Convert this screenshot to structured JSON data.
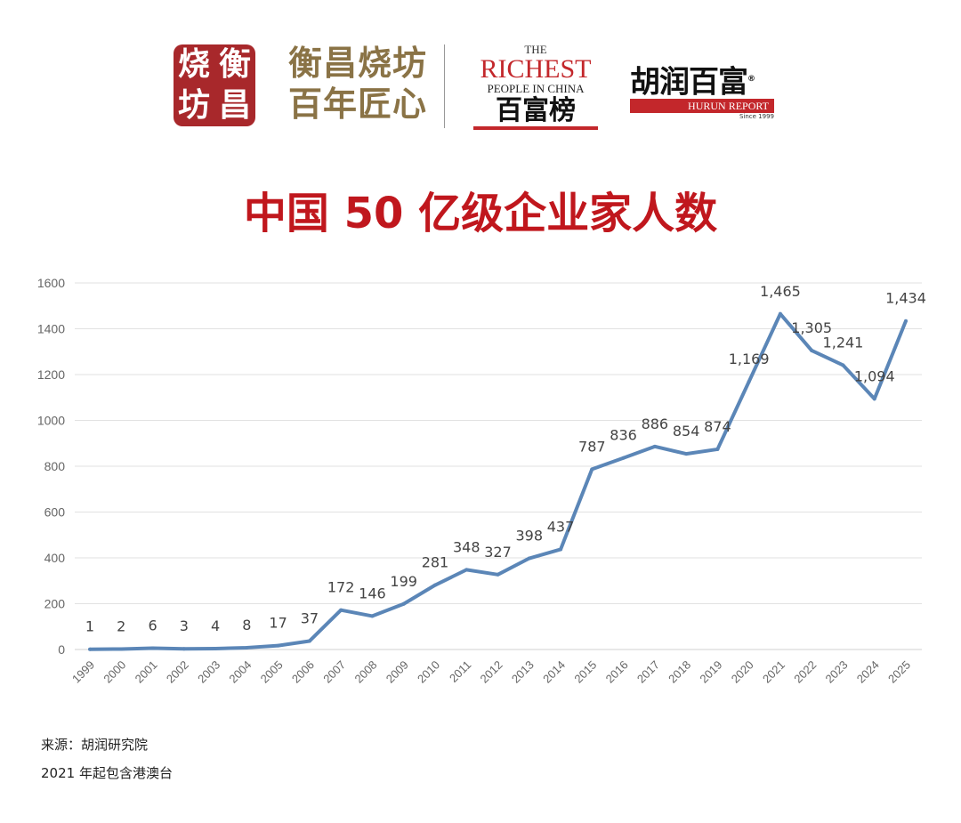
{
  "logos": {
    "seal_text": [
      "烧",
      "衡",
      "坊",
      "昌"
    ],
    "brand_lines": [
      "衡昌烧坊",
      "百年匠心"
    ],
    "richest": {
      "the": "THE",
      "big": "RICHEST",
      "sub": "PEOPLE IN CHINA",
      "cn": "百富榜"
    },
    "hurun": {
      "cn": "胡润百富",
      "reg": "®",
      "bar": "HURUN REPORT",
      "since": "Since 1999"
    }
  },
  "title": "中国 50 亿级企业家人数",
  "chart_data": {
    "type": "line",
    "title": "中国 50 亿级企业家人数",
    "xlabel": "",
    "ylabel": "",
    "categories": [
      "1999",
      "2000",
      "2001",
      "2002",
      "2003",
      "2004",
      "2005",
      "2006",
      "2007",
      "2008",
      "2009",
      "2010",
      "2011",
      "2012",
      "2013",
      "2014",
      "2015",
      "2016",
      "2017",
      "2018",
      "2019",
      "2020",
      "2021",
      "2022",
      "2023",
      "2024",
      "2025"
    ],
    "values": [
      1,
      2,
      6,
      3,
      4,
      8,
      17,
      37,
      172,
      146,
      199,
      281,
      348,
      327,
      398,
      437,
      787,
      836,
      886,
      854,
      874,
      1169,
      1465,
      1305,
      1241,
      1094,
      1434
    ],
    "ylim": [
      0,
      1600
    ],
    "yticks": [
      0,
      200,
      400,
      600,
      800,
      1000,
      1200,
      1400,
      1600
    ],
    "grid": true,
    "data_labels": true,
    "line_color": "#5b86b7"
  },
  "footer": {
    "source": "来源：胡润研究院",
    "note": "2021 年起包含港澳台"
  }
}
